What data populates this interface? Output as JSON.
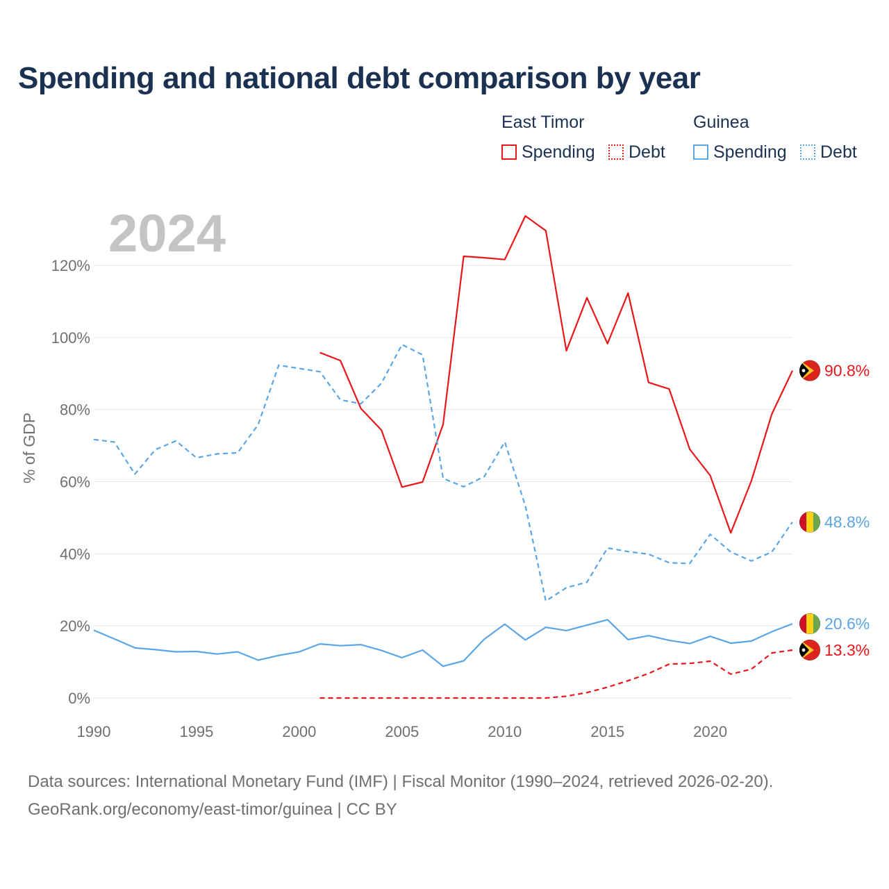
{
  "page": {
    "title": "Spending and national debt comparison by year"
  },
  "legend": {
    "groups": [
      {
        "country": "East Timor",
        "spending_label": "Spending",
        "debt_label": "Debt",
        "color": "#e8161a"
      },
      {
        "country": "Guinea",
        "spending_label": "Spending",
        "debt_label": "Debt",
        "color": "#5aa5e6"
      }
    ]
  },
  "footer": {
    "line1": "Data sources: International Monetary Fund (IMF) | Fiscal Monitor (1990–2024, retrieved 2026-02-20).",
    "line2": "GeoRank.org/economy/east-timor/guinea | CC BY"
  },
  "chart_data": {
    "type": "line",
    "title": "Spending and national debt comparison by year",
    "year_label": "2024",
    "ylabel": "% of GDP",
    "xlabel": "",
    "xlim": [
      1990,
      2024
    ],
    "ylim": [
      0,
      130
    ],
    "x_ticks": [
      1990,
      1995,
      2000,
      2005,
      2010,
      2015,
      2020
    ],
    "x_tick_labels": [
      "1990",
      "1995",
      "2000",
      "2005",
      "2010",
      "2015",
      "2020"
    ],
    "y_ticks": [
      0,
      20,
      40,
      60,
      80,
      100,
      120
    ],
    "y_tick_labels": [
      "0%",
      "20%",
      "40%",
      "60%",
      "80%",
      "100%",
      "120%"
    ],
    "grid": true,
    "legend_position": "top-right",
    "series": [
      {
        "name": "East Timor Spending",
        "country": "East Timor",
        "style": "solid",
        "color": "#e8161a",
        "end_label": "90.8%",
        "flag": "east-timor",
        "x": [
          2001,
          2002,
          2003,
          2004,
          2005,
          2006,
          2007,
          2008,
          2009,
          2010,
          2011,
          2012,
          2013,
          2014,
          2015,
          2016,
          2017,
          2018,
          2019,
          2020,
          2021,
          2022,
          2023,
          2024
        ],
        "values": [
          95.8,
          93.6,
          80.3,
          74.3,
          58.5,
          59.9,
          75.9,
          122.5,
          122.1,
          121.6,
          133.7,
          129.6,
          96.3,
          111.0,
          98.3,
          112.3,
          87.5,
          85.7,
          69.0,
          61.7,
          45.8,
          60.2,
          78.8,
          90.8
        ]
      },
      {
        "name": "East Timor Debt",
        "country": "East Timor",
        "style": "dashed",
        "color": "#e8161a",
        "end_label": "13.3%",
        "flag": "east-timor",
        "x": [
          2001,
          2002,
          2003,
          2004,
          2005,
          2006,
          2007,
          2008,
          2009,
          2010,
          2011,
          2012,
          2013,
          2014,
          2015,
          2016,
          2017,
          2018,
          2019,
          2020,
          2021,
          2022,
          2023,
          2024
        ],
        "values": [
          0,
          0,
          0,
          0,
          0,
          0,
          0,
          0,
          0,
          0,
          0,
          0,
          0.5,
          1.5,
          3.0,
          4.8,
          6.8,
          9.4,
          9.6,
          10.2,
          6.6,
          8.0,
          12.5,
          13.3
        ]
      },
      {
        "name": "Guinea Spending",
        "country": "Guinea",
        "style": "solid",
        "color": "#5aa5e6",
        "end_label": "20.6%",
        "flag": "guinea",
        "x": [
          1990,
          1991,
          1992,
          1993,
          1994,
          1995,
          1996,
          1997,
          1998,
          1999,
          2000,
          2001,
          2002,
          2003,
          2004,
          2005,
          2006,
          2007,
          2008,
          2009,
          2010,
          2011,
          2012,
          2013,
          2014,
          2015,
          2016,
          2017,
          2018,
          2019,
          2020,
          2021,
          2022,
          2023,
          2024
        ],
        "values": [
          18.8,
          16.4,
          13.9,
          13.4,
          12.8,
          12.9,
          12.2,
          12.8,
          10.5,
          11.8,
          12.8,
          15.0,
          14.5,
          14.8,
          13.2,
          11.2,
          13.3,
          8.8,
          10.3,
          16.3,
          20.5,
          16.1,
          19.6,
          18.7,
          20.2,
          21.7,
          16.2,
          17.3,
          16.0,
          15.1,
          17.1,
          15.2,
          15.8,
          18.4,
          20.6
        ]
      },
      {
        "name": "Guinea Debt",
        "country": "Guinea",
        "style": "dashed",
        "color": "#5aa5e6",
        "end_label": "48.8%",
        "flag": "guinea",
        "x": [
          1990,
          1991,
          1992,
          1993,
          1994,
          1995,
          1996,
          1997,
          1998,
          1999,
          2000,
          2001,
          2002,
          2003,
          2004,
          2005,
          2006,
          2007,
          2008,
          2009,
          2010,
          2011,
          2012,
          2013,
          2014,
          2015,
          2016,
          2017,
          2018,
          2019,
          2020,
          2021,
          2022,
          2023,
          2024
        ],
        "values": [
          71.7,
          71.0,
          62.1,
          68.9,
          71.3,
          66.6,
          67.7,
          68.0,
          75.8,
          92.3,
          91.4,
          90.5,
          82.7,
          81.6,
          87.3,
          98.0,
          95.2,
          60.9,
          58.6,
          61.4,
          71.0,
          53.3,
          26.9,
          30.6,
          32.1,
          41.6,
          40.6,
          39.9,
          37.5,
          37.3,
          45.4,
          40.5,
          38.0,
          40.5,
          48.8
        ]
      }
    ]
  }
}
